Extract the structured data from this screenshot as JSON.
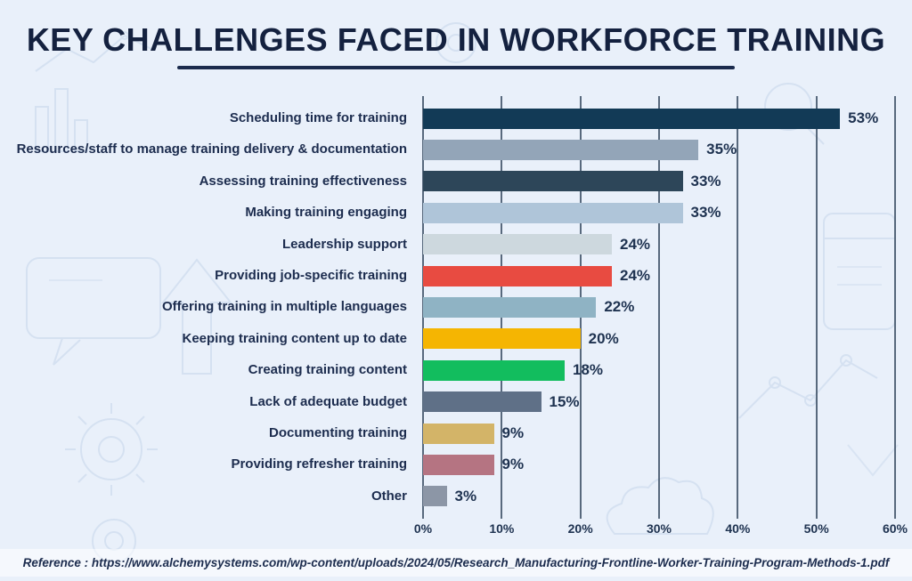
{
  "page": {
    "title": "KEY CHALLENGES FACED IN WORKFORCE TRAINING",
    "reference": "Reference : https://www.alchemysystems.com/wp-content/uploads/2024/05/Research_Manufacturing-Frontline-Worker-Training-Program-Methods-1.pdf"
  },
  "colors": {
    "background": "#e9f0fa",
    "title_text": "#14213f",
    "label_text": "#1c2c4e",
    "gridline": "#3e5166",
    "reference_strip": "#f4f8fd"
  },
  "chart_data": {
    "type": "bar",
    "orientation": "horizontal",
    "title": "KEY CHALLENGES FACED IN WORKFORCE TRAINING",
    "categories": [
      "Scheduling time for training",
      "Resources/staff to manage training delivery & documentation",
      "Assessing training effectiveness",
      "Making training engaging",
      "Leadership support",
      "Providing job-specific training",
      "Offering training in multiple languages",
      "Keeping training content up to date",
      "Creating training content",
      "Lack of adequate budget",
      "Documenting training",
      "Providing refresher training",
      "Other"
    ],
    "values": [
      53,
      35,
      33,
      33,
      24,
      24,
      22,
      20,
      18,
      15,
      9,
      9,
      3
    ],
    "value_suffix": "%",
    "bar_colors": [
      "#123a56",
      "#93a5b8",
      "#2d4659",
      "#afc5d9",
      "#cdd8de",
      "#e84b41",
      "#8fb3c4",
      "#f5b502",
      "#12bd5e",
      "#5f7087",
      "#d3b468",
      "#b57482",
      "#8c96a6"
    ],
    "xlabel": "",
    "ylabel": "",
    "xlim": [
      0,
      60
    ],
    "x_ticks": [
      "0%",
      "10%",
      "20%",
      "30%",
      "40%",
      "50%",
      "60%"
    ],
    "grid": "vertical-only",
    "legend": "none"
  }
}
